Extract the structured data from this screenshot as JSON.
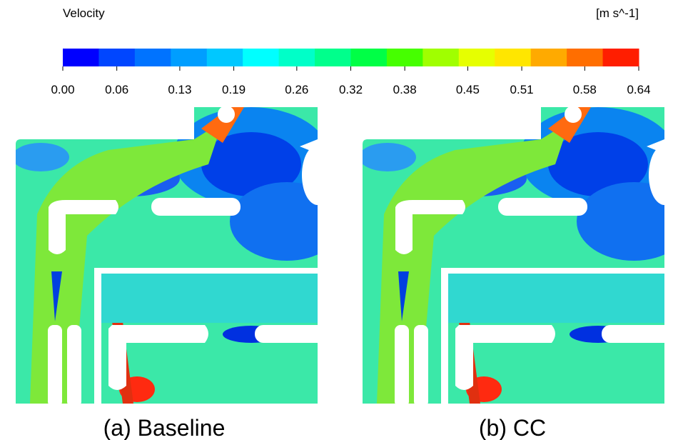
{
  "colorbar": {
    "title": "Velocity",
    "unit": "[m s^-1]",
    "range": [
      0,
      0.64
    ],
    "ticks": [
      {
        "value": 0,
        "label": "0.00"
      },
      0.06,
      0.13,
      0.19,
      0.26,
      0.32,
      0.38,
      0.45,
      0.51,
      0.58,
      0.64
    ],
    "colors": [
      "#0000ff",
      "#0046ff",
      "#0073ff",
      "#009eff",
      "#00c8ff",
      "#00ffff",
      "#00ffc8",
      "#00ff8c",
      "#00ff46",
      "#46ff00",
      "#a0ff00",
      "#e6ff00",
      "#ffe600",
      "#ffaa00",
      "#ff6e00",
      "#ff1e00"
    ]
  },
  "panels": [
    {
      "caption": "(a) Baseline"
    },
    {
      "caption": "(b) CC"
    }
  ]
}
